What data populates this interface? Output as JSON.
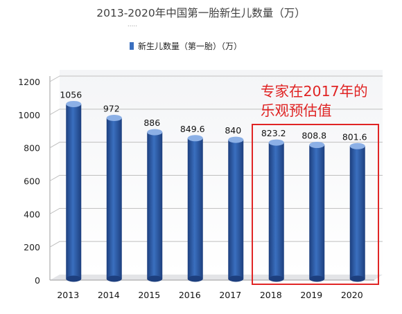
{
  "chart_data": {
    "type": "bar",
    "title": "2013-2020年中国第一胎新生儿数量（万）",
    "legend": {
      "label": "新生儿数量（第一胎）（万）",
      "position": "top-left"
    },
    "categories": [
      "2013",
      "2014",
      "2015",
      "2016",
      "2017",
      "2018",
      "2019",
      "2020"
    ],
    "series": [
      {
        "name": "新生儿数量（第一胎）（万）",
        "values": [
          1056,
          972,
          886,
          849.6,
          840,
          823.2,
          808.8,
          801.6
        ]
      }
    ],
    "data_labels": [
      "1056",
      "972",
      "886",
      "849.6",
      "840",
      "823.2",
      "808.8",
      "801.6"
    ],
    "y_ticks": [
      "0",
      "200",
      "400",
      "600",
      "800",
      "1000",
      "1200"
    ],
    "ylim": [
      0,
      1200
    ],
    "grid": true,
    "style": "3d-cylinder",
    "annotation": {
      "line1": "专家在2017年的",
      "line2": "乐观预估值",
      "highlighted_categories": [
        "2018",
        "2019",
        "2020"
      ]
    },
    "colors": {
      "bar": "#3a6fbf",
      "bar_dark": "#1d3f7e",
      "bar_top": "#8cb0e6",
      "annotation": "#e02424",
      "title": "#404040",
      "grid": "#bfbfbf"
    }
  }
}
